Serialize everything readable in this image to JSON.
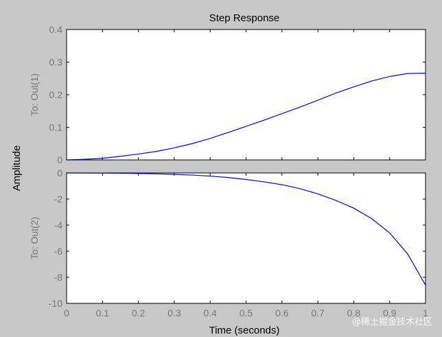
{
  "chart_data": {
    "type": "line",
    "title": "Step Response",
    "xlabel": "Time (seconds)",
    "ylabel": "Amplitude",
    "xlim": [
      0,
      1
    ],
    "x_ticks": [
      0,
      0.1,
      0.2,
      0.3,
      0.4,
      0.5,
      0.6,
      0.7,
      0.8,
      0.9,
      1
    ],
    "x_tick_labels": [
      "0",
      "0.1",
      "0.2",
      "0.3",
      "0.4",
      "0.5",
      "0.6",
      "0.7",
      "0.8",
      "0.9",
      "1"
    ],
    "grid": false,
    "colors": {
      "line": "#0000ff",
      "axes_bg": "#ffffff",
      "figure_bg": "#c8c8c8",
      "tick_text": "#777777"
    },
    "subplots": [
      {
        "ylabel": "To: Out(1)",
        "ylim": [
          0,
          0.4
        ],
        "y_ticks": [
          0,
          0.1,
          0.2,
          0.3,
          0.4
        ],
        "y_tick_labels": [
          "0",
          "0.1",
          "0.2",
          "0.3",
          "0.4"
        ],
        "series": [
          {
            "x": [
              0,
              0.05,
              0.1,
              0.15,
              0.2,
              0.25,
              0.3,
              0.35,
              0.4,
              0.45,
              0.5,
              0.55,
              0.6,
              0.65,
              0.7,
              0.75,
              0.8,
              0.85,
              0.9,
              0.95,
              1.0
            ],
            "y": [
              0,
              0.002,
              0.005,
              0.011,
              0.018,
              0.026,
              0.037,
              0.05,
              0.066,
              0.084,
              0.103,
              0.122,
              0.142,
              0.162,
              0.183,
              0.205,
              0.224,
              0.242,
              0.256,
              0.265,
              0.266
            ]
          }
        ]
      },
      {
        "ylabel": "To: Out(2)",
        "ylim": [
          -10,
          0
        ],
        "y_ticks": [
          0,
          -2,
          -4,
          -6,
          -8,
          -10
        ],
        "y_tick_labels": [
          "0",
          "-2",
          "-4",
          "-6",
          "-8",
          "-10"
        ],
        "series": [
          {
            "x": [
              0,
              0.05,
              0.1,
              0.15,
              0.2,
              0.25,
              0.3,
              0.35,
              0.4,
              0.45,
              0.5,
              0.55,
              0.6,
              0.65,
              0.7,
              0.75,
              0.8,
              0.85,
              0.9,
              0.95,
              1.0
            ],
            "y": [
              0,
              -0.005,
              -0.01,
              -0.02,
              -0.04,
              -0.07,
              -0.11,
              -0.16,
              -0.24,
              -0.35,
              -0.5,
              -0.68,
              -0.9,
              -1.2,
              -1.6,
              -2.1,
              -2.7,
              -3.5,
              -4.6,
              -6.2,
              -8.6
            ]
          }
        ]
      }
    ]
  },
  "watermark": "@稀土掘金技术社区"
}
